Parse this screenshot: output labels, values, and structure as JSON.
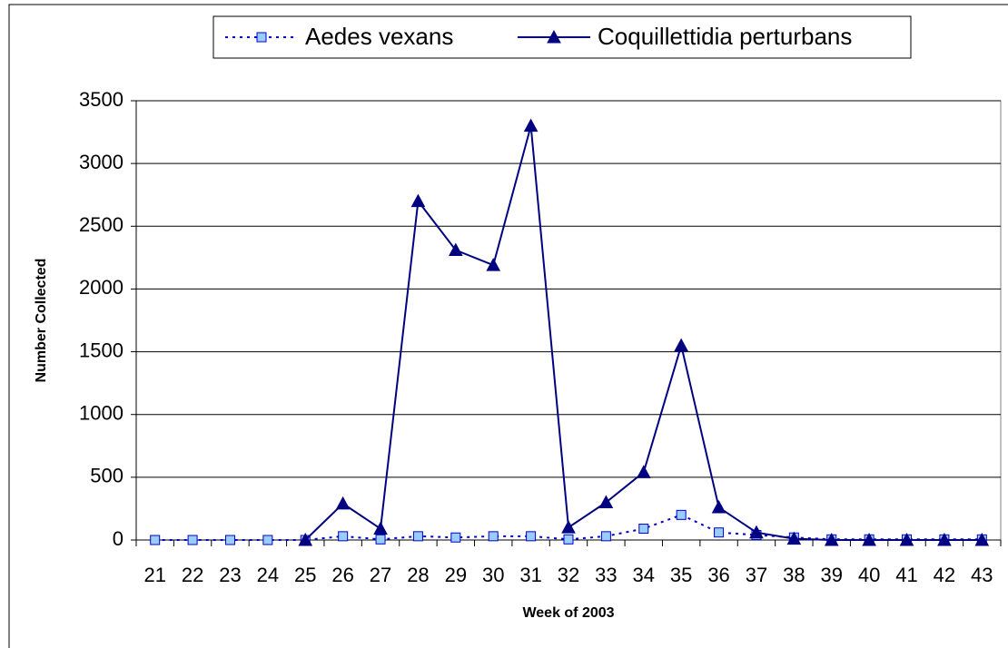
{
  "chart_data": {
    "type": "line",
    "categories": [
      21,
      22,
      23,
      24,
      25,
      26,
      27,
      28,
      29,
      30,
      31,
      32,
      33,
      34,
      35,
      36,
      37,
      38,
      39,
      40,
      41,
      42,
      43
    ],
    "series": [
      {
        "name": "Aedes vexans",
        "color": "#0000cc",
        "values": [
          0,
          0,
          0,
          0,
          0,
          30,
          5,
          30,
          20,
          30,
          30,
          5,
          30,
          90,
          200,
          60,
          40,
          20,
          5,
          5,
          5,
          5,
          5
        ]
      },
      {
        "name": "Coquillettidia perturbans",
        "color": "#000080",
        "values": [
          null,
          null,
          null,
          null,
          0,
          290,
          90,
          2700,
          2310,
          2190,
          3300,
          100,
          300,
          540,
          1550,
          260,
          60,
          10,
          0,
          0,
          0,
          0,
          0
        ]
      }
    ],
    "xlabel": "Week of 2003",
    "ylabel": "Number Collected",
    "ylim": [
      0,
      3500
    ],
    "yticks": [
      0,
      500,
      1000,
      1500,
      2000,
      2500,
      3000,
      3500
    ],
    "grid": true,
    "legend": "top"
  }
}
